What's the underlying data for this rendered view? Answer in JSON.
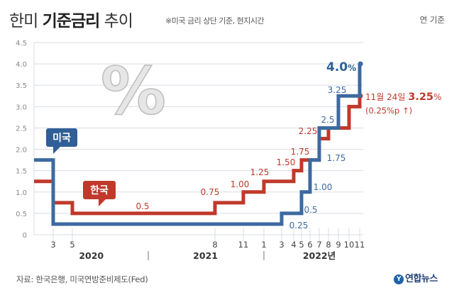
{
  "header": {
    "title_light_1": "한미 ",
    "title_bold": "기준금리",
    "title_light_2": " 추이",
    "subtitle": "※미국 금리 상단 기준, 현지시간",
    "unit_note": "연 기준"
  },
  "footer": {
    "source": "자료: 한국은행, 미국연방준비제도(Fed)",
    "logo_text": "연합뉴스"
  },
  "badges": {
    "us": "미국",
    "kr": "한국",
    "percent": "%"
  },
  "annotations": {
    "us_latest": "4.0",
    "us_latest_unit": "%",
    "kr_latest_date": "11월 24일 ",
    "kr_latest_value": "3.25",
    "kr_latest_unit": "%",
    "kr_latest_change": "(0.25%p ↑)"
  },
  "colors": {
    "us": "#3c6aa0",
    "kr": "#c0392b",
    "grid": "#d8dde6",
    "us_badge": "#2f5f96",
    "kr_badge": "#c0392b"
  },
  "chart_data": {
    "type": "line",
    "step": true,
    "title": "한미 기준금리 추이",
    "subtitle": "※미국 금리 상단 기준, 현지시간",
    "ylim": [
      0,
      4.5
    ],
    "y_ticks": [
      "0",
      "0.5",
      "1.0",
      "1.5",
      "2.0",
      "2.5",
      "3.0",
      "3.5",
      "4.0",
      "4.5"
    ],
    "x_ticks": [
      {
        "label": "3",
        "x": "2020-03"
      },
      {
        "label": "5",
        "x": "2020-05"
      },
      {
        "label": "8",
        "x": "2021-08"
      },
      {
        "label": "11",
        "x": "2021-11"
      },
      {
        "label": "1",
        "x": "2022-01"
      },
      {
        "label": "3",
        "x": "2022-03"
      },
      {
        "label": "4",
        "x": "2022-04"
      },
      {
        "label": "5",
        "x": "2022-05"
      },
      {
        "label": "6",
        "x": "2022-06"
      },
      {
        "label": "7",
        "x": "2022-07"
      },
      {
        "label": "8",
        "x": "2022-08"
      },
      {
        "label": "9",
        "x": "2022-09"
      },
      {
        "label": "10",
        "x": "2022-10"
      },
      {
        "label": "11",
        "x": "2022-11"
      }
    ],
    "year_labels": [
      {
        "label": "2020",
        "x": "2020-07"
      },
      {
        "label": "2021",
        "x": "2021-07"
      },
      {
        "label": "2022년",
        "x": "2022-07"
      }
    ],
    "year_dividers": [
      "2021-01",
      "2022-01"
    ],
    "series": [
      {
        "name": "미국",
        "points": [
          {
            "x": "2020-01",
            "y": 1.75
          },
          {
            "x": "2020-03",
            "y": 0.25
          },
          {
            "x": "2022-03",
            "y": 0.5
          },
          {
            "x": "2022-05",
            "y": 1.0
          },
          {
            "x": "2022-06",
            "y": 1.75
          },
          {
            "x": "2022-07",
            "y": 2.5
          },
          {
            "x": "2022-09",
            "y": 3.25
          },
          {
            "x": "2022-11",
            "y": 4.0
          }
        ],
        "point_labels": [
          "",
          "0.25",
          "0.5",
          "1.00",
          "1.75",
          "2.5",
          "3.25",
          ""
        ]
      },
      {
        "name": "한국",
        "points": [
          {
            "x": "2020-01",
            "y": 1.25
          },
          {
            "x": "2020-03",
            "y": 0.75
          },
          {
            "x": "2020-05",
            "y": 0.5
          },
          {
            "x": "2021-08",
            "y": 0.75
          },
          {
            "x": "2021-11",
            "y": 1.0
          },
          {
            "x": "2022-01",
            "y": 1.25
          },
          {
            "x": "2022-04",
            "y": 1.5
          },
          {
            "x": "2022-05",
            "y": 1.75
          },
          {
            "x": "2022-07",
            "y": 2.25
          },
          {
            "x": "2022-08",
            "y": 2.5
          },
          {
            "x": "2022-10",
            "y": 3.0
          },
          {
            "x": "2022-11",
            "y": 3.25
          }
        ],
        "point_labels": [
          "",
          "",
          "0.5",
          "0.75",
          "1.00",
          "1.25",
          "1.50",
          "1.75",
          "2.25",
          "",
          "",
          ""
        ]
      }
    ]
  }
}
